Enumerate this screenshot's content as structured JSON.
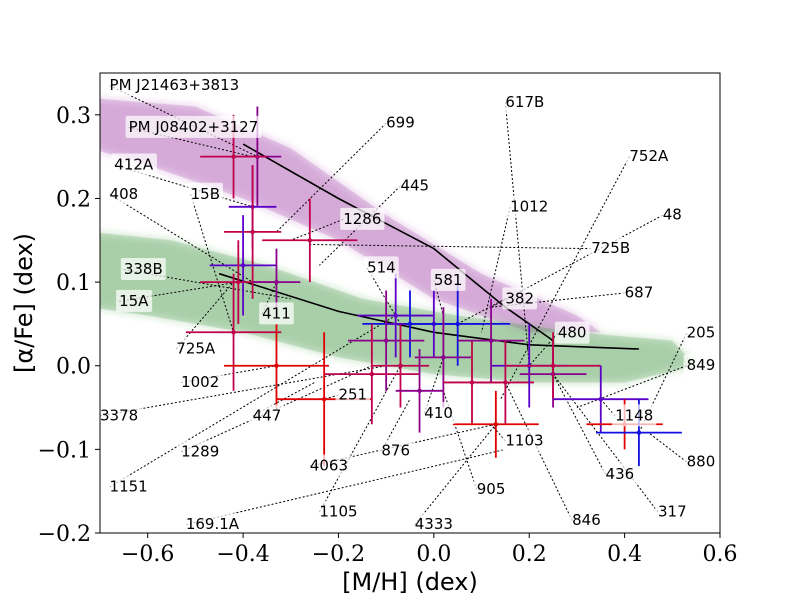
{
  "chart_data": {
    "type": "scatter",
    "title": "",
    "xlabel": "[M/H] (dex)",
    "ylabel": "[α/Fe] (dex)",
    "xlim": [
      -0.7,
      0.6
    ],
    "ylim": [
      -0.2,
      0.35
    ],
    "xticks": [
      -0.6,
      -0.4,
      -0.2,
      0.0,
      0.2,
      0.4,
      0.6
    ],
    "yticks": [
      -0.2,
      -0.1,
      0.0,
      0.1,
      0.2,
      0.3
    ],
    "xtick_labels": [
      "−0.6",
      "−0.4",
      "−0.2",
      "0.0",
      "0.2",
      "0.4",
      "0.6"
    ],
    "ytick_labels": [
      "−0.2",
      "−0.1",
      "0.0",
      "0.1",
      "0.2",
      "0.3"
    ],
    "colors": {
      "thick_disk": "#9b30a0",
      "thin_disk": "#2e8b2e",
      "red": "#e00000",
      "crimson": "#c0004a",
      "purple": "#8a008a",
      "indigo": "#5a00c8",
      "blue": "#1010e0",
      "line": "#000000"
    },
    "density_regions": [
      {
        "name": "thick disk",
        "color": "thick_disk",
        "path": [
          [
            -0.72,
            0.32
          ],
          [
            -0.5,
            0.31
          ],
          [
            -0.3,
            0.26
          ],
          [
            -0.1,
            0.18
          ],
          [
            0.1,
            0.11
          ],
          [
            0.3,
            0.06
          ],
          [
            0.35,
            0.04
          ],
          [
            0.2,
            0.04
          ],
          [
            0.0,
            0.08
          ],
          [
            -0.2,
            0.15
          ],
          [
            -0.4,
            0.2
          ],
          [
            -0.6,
            0.24
          ],
          [
            -0.72,
            0.26
          ]
        ]
      },
      {
        "name": "thin disk",
        "color": "thin_disk",
        "path": [
          [
            -0.72,
            0.16
          ],
          [
            -0.55,
            0.15
          ],
          [
            -0.35,
            0.12
          ],
          [
            -0.15,
            0.08
          ],
          [
            0.05,
            0.06
          ],
          [
            0.3,
            0.04
          ],
          [
            0.5,
            0.03
          ],
          [
            0.55,
            0.0
          ],
          [
            0.4,
            -0.02
          ],
          [
            0.2,
            -0.02
          ],
          [
            0.0,
            -0.01
          ],
          [
            -0.2,
            0.01
          ],
          [
            -0.4,
            0.04
          ],
          [
            -0.6,
            0.06
          ],
          [
            -0.72,
            0.07
          ]
        ]
      }
    ],
    "trend_lines": [
      {
        "name": "thick-disk-trend",
        "points": [
          [
            -0.4,
            0.265
          ],
          [
            -0.2,
            0.2
          ],
          [
            0.0,
            0.14
          ],
          [
            0.15,
            0.07
          ],
          [
            0.25,
            0.03
          ]
        ]
      },
      {
        "name": "thin-disk-trend",
        "points": [
          [
            -0.45,
            0.11
          ],
          [
            -0.2,
            0.065
          ],
          [
            0.0,
            0.04
          ],
          [
            0.2,
            0.025
          ],
          [
            0.43,
            0.02
          ]
        ]
      }
    ],
    "points": [
      {
        "x": -0.37,
        "y": 0.25,
        "xerr": 0.05,
        "yerr": 0.06,
        "color": "purple"
      },
      {
        "x": -0.42,
        "y": 0.25,
        "xerr": 0.07,
        "yerr": 0.05,
        "color": "crimson"
      },
      {
        "x": -0.38,
        "y": 0.19,
        "xerr": 0.05,
        "yerr": 0.05,
        "color": "indigo"
      },
      {
        "x": -0.38,
        "y": 0.16,
        "xerr": 0.06,
        "yerr": 0.08,
        "color": "crimson"
      },
      {
        "x": -0.26,
        "y": 0.15,
        "xerr": 0.1,
        "yerr": 0.05,
        "color": "crimson"
      },
      {
        "x": -0.4,
        "y": 0.12,
        "xerr": 0.07,
        "yerr": 0.06,
        "color": "indigo"
      },
      {
        "x": -0.41,
        "y": 0.1,
        "xerr": 0.08,
        "yerr": 0.05,
        "color": "crimson"
      },
      {
        "x": -0.42,
        "y": 0.04,
        "xerr": 0.1,
        "yerr": 0.07,
        "color": "crimson"
      },
      {
        "x": -0.33,
        "y": 0.1,
        "xerr": 0.05,
        "yerr": 0.04,
        "color": "purple"
      },
      {
        "x": -0.33,
        "y": 0.0,
        "xerr": 0.11,
        "yerr": 0.05,
        "color": "red"
      },
      {
        "x": -0.23,
        "y": -0.04,
        "xerr": 0.1,
        "yerr": 0.08,
        "color": "red"
      },
      {
        "x": -0.08,
        "y": 0.06,
        "xerr": 0.08,
        "yerr": 0.05,
        "color": "indigo"
      },
      {
        "x": -0.05,
        "y": 0.05,
        "xerr": 0.1,
        "yerr": 0.04,
        "color": "blue"
      },
      {
        "x": -0.1,
        "y": 0.03,
        "xerr": 0.08,
        "yerr": 0.06,
        "color": "purple"
      },
      {
        "x": -0.13,
        "y": -0.01,
        "xerr": 0.1,
        "yerr": 0.06,
        "color": "crimson"
      },
      {
        "x": -0.07,
        "y": 0.0,
        "xerr": 0.06,
        "yerr": 0.05,
        "color": "crimson"
      },
      {
        "x": -0.03,
        "y": -0.03,
        "xerr": 0.05,
        "yerr": 0.05,
        "color": "purple"
      },
      {
        "x": 0.0,
        "y": 0.05,
        "xerr": 0.1,
        "yerr": 0.04,
        "color": "indigo"
      },
      {
        "x": 0.05,
        "y": 0.05,
        "xerr": 0.11,
        "yerr": 0.05,
        "color": "blue"
      },
      {
        "x": 0.02,
        "y": 0.01,
        "xerr": 0.06,
        "yerr": 0.06,
        "color": "purple"
      },
      {
        "x": 0.08,
        "y": -0.02,
        "xerr": 0.06,
        "yerr": 0.05,
        "color": "crimson"
      },
      {
        "x": 0.12,
        "y": 0.03,
        "xerr": 0.07,
        "yerr": 0.05,
        "color": "purple"
      },
      {
        "x": 0.13,
        "y": -0.07,
        "xerr": 0.09,
        "yerr": 0.04,
        "color": "red"
      },
      {
        "x": 0.15,
        "y": -0.02,
        "xerr": 0.06,
        "yerr": 0.05,
        "color": "crimson"
      },
      {
        "x": 0.2,
        "y": 0.0,
        "xerr": 0.08,
        "yerr": 0.05,
        "color": "indigo"
      },
      {
        "x": 0.25,
        "y": -0.01,
        "xerr": 0.07,
        "yerr": 0.04,
        "color": "purple"
      },
      {
        "x": 0.25,
        "y": 0.0,
        "xerr": 0.1,
        "yerr": 0.04,
        "color": "crimson"
      },
      {
        "x": 0.35,
        "y": -0.04,
        "xerr": 0.1,
        "yerr": 0.04,
        "color": "indigo"
      },
      {
        "x": 0.4,
        "y": -0.07,
        "xerr": 0.08,
        "yerr": 0.03,
        "color": "red"
      },
      {
        "x": 0.43,
        "y": -0.08,
        "xerr": 0.09,
        "yerr": 0.04,
        "color": "blue"
      }
    ],
    "annotations": [
      {
        "text": "PM J21463+3813",
        "x": -0.68,
        "y": 0.335,
        "tx": -0.37,
        "ty": 0.25
      },
      {
        "text": "PM J08402+3127",
        "x": -0.64,
        "y": 0.285,
        "tx": -0.38,
        "ty": 0.25
      },
      {
        "text": "699",
        "x": -0.1,
        "y": 0.29,
        "tx": -0.33,
        "ty": 0.16
      },
      {
        "text": "617B",
        "x": 0.15,
        "y": 0.315,
        "tx": 0.2,
        "ty": 0.0
      },
      {
        "text": "412A",
        "x": -0.67,
        "y": 0.24,
        "tx": -0.38,
        "ty": 0.19
      },
      {
        "text": "752A",
        "x": 0.41,
        "y": 0.25,
        "tx": 0.14,
        "ty": -0.04
      },
      {
        "text": "445",
        "x": -0.07,
        "y": 0.215,
        "tx": -0.24,
        "ty": 0.12
      },
      {
        "text": "408",
        "x": -0.68,
        "y": 0.205,
        "tx": -0.38,
        "ty": 0.1
      },
      {
        "text": "15B",
        "x": -0.51,
        "y": 0.205,
        "tx": -0.42,
        "ty": 0.04
      },
      {
        "text": "1012",
        "x": 0.16,
        "y": 0.19,
        "tx": 0.1,
        "ty": 0.04
      },
      {
        "text": "48",
        "x": 0.48,
        "y": 0.18,
        "tx": 0.12,
        "ty": 0.07
      },
      {
        "text": "1286",
        "x": -0.19,
        "y": 0.175,
        "tx": -0.3,
        "ty": 0.15
      },
      {
        "text": "725B",
        "x": 0.33,
        "y": 0.14,
        "tx": -0.26,
        "ty": 0.145
      },
      {
        "text": "338B",
        "x": -0.65,
        "y": 0.115,
        "tx": -0.3,
        "ty": 0.08
      },
      {
        "text": "514",
        "x": -0.14,
        "y": 0.117,
        "tx": -0.07,
        "ty": 0.05
      },
      {
        "text": "581",
        "x": 0.0,
        "y": 0.102,
        "tx": 0.02,
        "ty": 0.06
      },
      {
        "text": "15A",
        "x": -0.66,
        "y": 0.077,
        "tx": -0.41,
        "ty": 0.1
      },
      {
        "text": "687",
        "x": 0.4,
        "y": 0.087,
        "tx": 0.12,
        "ty": 0.07
      },
      {
        "text": "382",
        "x": 0.15,
        "y": 0.08,
        "tx": 0.05,
        "ty": 0.05
      },
      {
        "text": "411",
        "x": -0.36,
        "y": 0.062,
        "tx": -0.33,
        "ty": 0.1
      },
      {
        "text": "480",
        "x": 0.26,
        "y": 0.039,
        "tx": 0.2,
        "ty": 0.0
      },
      {
        "text": "205",
        "x": 0.53,
        "y": 0.039,
        "tx": 0.43,
        "ty": -0.08
      },
      {
        "text": "725A",
        "x": -0.54,
        "y": 0.02,
        "tx": -0.42,
        "ty": 0.1
      },
      {
        "text": "1002",
        "x": -0.53,
        "y": -0.02,
        "tx": -0.33,
        "ty": 0.0
      },
      {
        "text": "849",
        "x": 0.53,
        "y": 0.0,
        "tx": 0.3,
        "ty": -0.05
      },
      {
        "text": "251",
        "x": -0.2,
        "y": -0.035,
        "tx": -0.23,
        "ty": -0.04
      },
      {
        "text": "3378",
        "x": -0.7,
        "y": -0.06,
        "tx": -0.1,
        "ty": 0.0
      },
      {
        "text": "447",
        "x": -0.38,
        "y": -0.06,
        "tx": -0.25,
        "ty": -0.02
      },
      {
        "text": "410",
        "x": -0.02,
        "y": -0.057,
        "tx": 0.02,
        "ty": 0.01
      },
      {
        "text": "1148",
        "x": 0.38,
        "y": -0.06,
        "tx": 0.35,
        "ty": -0.04
      },
      {
        "text": "1103",
        "x": 0.15,
        "y": -0.09,
        "tx": 0.12,
        "ty": -0.07
      },
      {
        "text": "876",
        "x": -0.11,
        "y": -0.102,
        "tx": -0.05,
        "ty": -0.04
      },
      {
        "text": "1289",
        "x": -0.53,
        "y": -0.103,
        "tx": -0.13,
        "ty": 0.0
      },
      {
        "text": "880",
        "x": 0.53,
        "y": -0.115,
        "tx": 0.45,
        "ty": -0.08
      },
      {
        "text": "4063",
        "x": -0.26,
        "y": -0.12,
        "tx": 0.13,
        "ty": -0.07
      },
      {
        "text": "436",
        "x": 0.36,
        "y": -0.13,
        "tx": 0.25,
        "ty": -0.01
      },
      {
        "text": "1151",
        "x": -0.68,
        "y": -0.145,
        "tx": -0.08,
        "ty": 0.06
      },
      {
        "text": "905",
        "x": 0.09,
        "y": -0.148,
        "tx": 0.02,
        "ty": -0.03
      },
      {
        "text": "1105",
        "x": -0.24,
        "y": -0.175,
        "tx": -0.07,
        "ty": 0.0
      },
      {
        "text": "317",
        "x": 0.47,
        "y": -0.175,
        "tx": 0.25,
        "ty": -0.01
      },
      {
        "text": "169.1A",
        "x": -0.52,
        "y": -0.19,
        "tx": 0.15,
        "ty": -0.1
      },
      {
        "text": "4333",
        "x": -0.04,
        "y": -0.19,
        "tx": 0.13,
        "ty": -0.07
      },
      {
        "text": "846",
        "x": 0.29,
        "y": -0.185,
        "tx": 0.15,
        "ty": -0.02
      }
    ]
  }
}
